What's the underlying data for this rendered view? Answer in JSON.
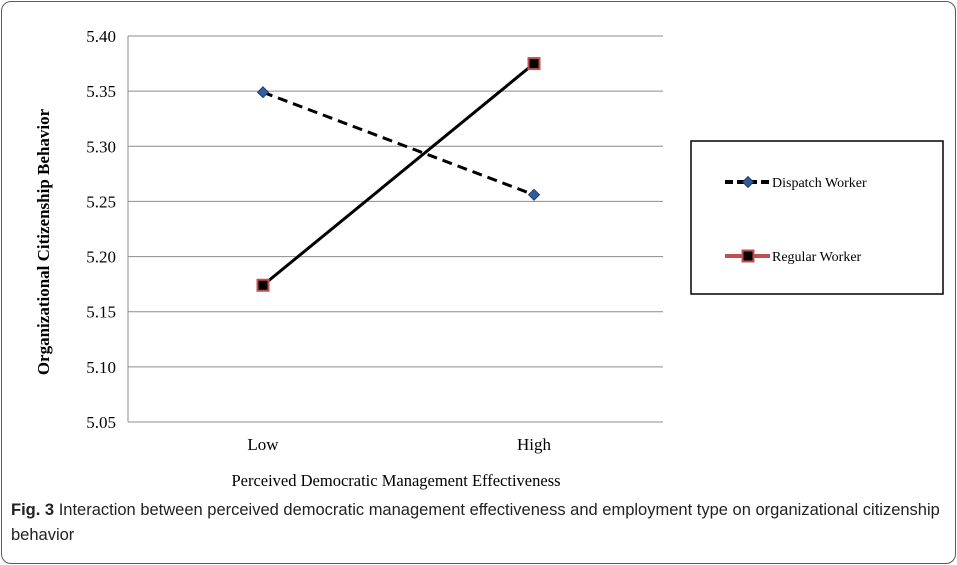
{
  "caption": {
    "label": "Fig. 3",
    "text": "Interaction between perceived democratic management effectiveness and employment type on organizational citizenship behavior"
  },
  "chart_data": {
    "type": "line",
    "categories": [
      "Low",
      "High"
    ],
    "xlabel": "Perceived Democratic Management Effectiveness",
    "ylabel": "Organizational Citizenship Behavior",
    "ylim": [
      5.05,
      5.4
    ],
    "yticks": [
      "5.05",
      "5.10",
      "5.15",
      "5.20",
      "5.25",
      "5.30",
      "5.35",
      "5.40"
    ],
    "grid": true,
    "legend_position": "right",
    "series": [
      {
        "name": "Dispatch Worker",
        "values": [
          5.349,
          5.256
        ],
        "line": "dashed",
        "color": "#000000",
        "marker": "diamond",
        "marker_color": "#2e5e9e"
      },
      {
        "name": "Regular Worker",
        "values": [
          5.174,
          5.375
        ],
        "line": "solid",
        "color": "#000000",
        "marker": "square",
        "marker_color": "#c0504d"
      }
    ]
  }
}
